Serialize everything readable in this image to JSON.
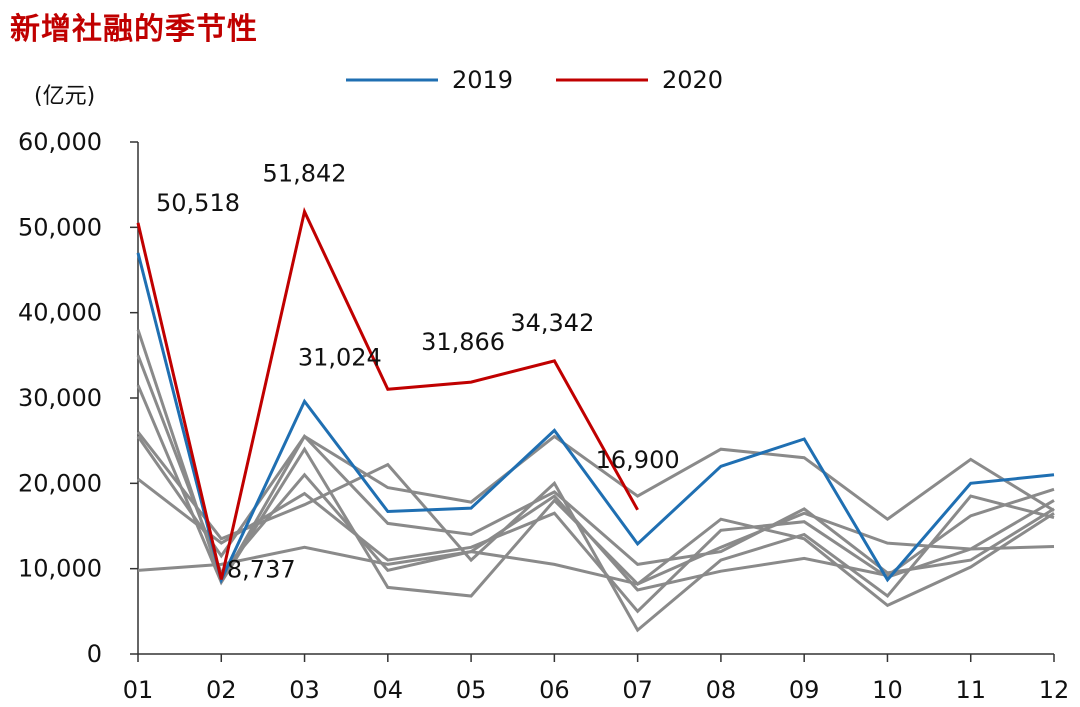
{
  "chart_data": {
    "type": "line",
    "title": "新增社融的季节性",
    "unit_label": "(亿元)",
    "categories": [
      "01",
      "02",
      "03",
      "04",
      "05",
      "06",
      "07",
      "08",
      "09",
      "10",
      "11",
      "12"
    ],
    "ylim": [
      0,
      60000
    ],
    "yticks": [
      0,
      10000,
      20000,
      30000,
      40000,
      50000,
      60000
    ],
    "ytick_labels": [
      "0",
      "10,000",
      "20,000",
      "30,000",
      "40,000",
      "50,000",
      "60,000"
    ],
    "legend": [
      "2019",
      "2020"
    ],
    "colors": {
      "2019": "#1f6fb2",
      "2020": "#c00000",
      "other": "#8a8a8a"
    },
    "series": [
      {
        "name": "2019",
        "values": [
          47000,
          8700,
          29600,
          16700,
          17100,
          26200,
          12900,
          22000,
          25200,
          8700,
          20000,
          21000
        ]
      },
      {
        "name": "2020",
        "values": [
          50518,
          8737,
          51842,
          31024,
          31866,
          34342,
          16900,
          null,
          null,
          null,
          null,
          null
        ]
      },
      {
        "name": "",
        "values": [
          9800,
          10500,
          12500,
          10500,
          12000,
          10500,
          8200,
          12500,
          16500,
          13000,
          12300,
          12600
        ]
      },
      {
        "name": "",
        "values": [
          20500,
          13000,
          18800,
          11000,
          12500,
          16500,
          5000,
          14500,
          15500,
          9000,
          12300,
          18000
        ]
      },
      {
        "name": "",
        "values": [
          26000,
          13500,
          17500,
          22200,
          11000,
          20000,
          2800,
          11000,
          14000,
          6800,
          18500,
          16000
        ]
      },
      {
        "name": "",
        "values": [
          25500,
          11500,
          25500,
          15300,
          14000,
          19000,
          10500,
          12000,
          17000,
          9500,
          11000,
          17000
        ]
      },
      {
        "name": "",
        "values": [
          31500,
          8400,
          24000,
          7800,
          6800,
          18000,
          8200,
          15800,
          13500,
          5700,
          10200,
          16500
        ]
      },
      {
        "name": "",
        "values": [
          35000,
          9500,
          21000,
          9800,
          12000,
          18500,
          7500,
          9700,
          11200,
          9200,
          16200,
          19300
        ]
      },
      {
        "name": "",
        "values": [
          38000,
          8500,
          25500,
          19500,
          17800,
          25500,
          18500,
          24000,
          23000,
          15800,
          22800,
          16800
        ]
      }
    ],
    "data_labels": [
      {
        "text": "50,518",
        "cat": 0,
        "value": 50518
      },
      {
        "text": "8,737",
        "cat": 1,
        "value": 8737
      },
      {
        "text": "51,842",
        "cat": 2,
        "value": 51842
      },
      {
        "text": "31,024",
        "cat": 3,
        "value": 31024
      },
      {
        "text": "31,866",
        "cat": 4,
        "value": 31866
      },
      {
        "text": "34,342",
        "cat": 5,
        "value": 34342
      },
      {
        "text": "16,900",
        "cat": 6,
        "value": 16900
      }
    ]
  }
}
